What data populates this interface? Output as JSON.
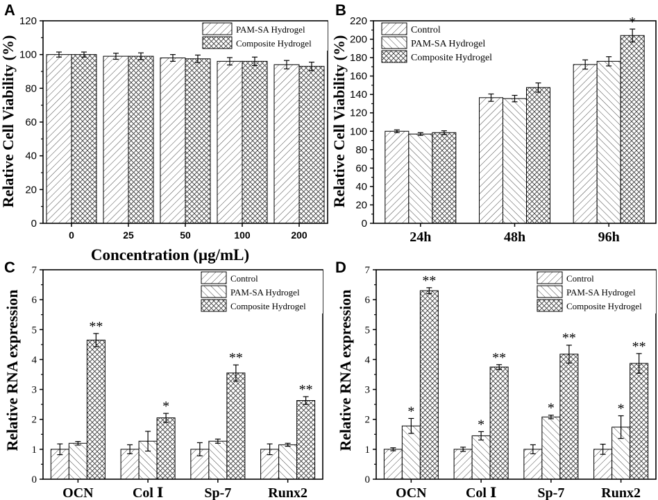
{
  "figure": {
    "panel_letters": [
      "A",
      "B",
      "C",
      "D"
    ]
  },
  "colors": {
    "axis": "#000000",
    "hatch": "#222222",
    "background": "#ffffff"
  },
  "chart_data": [
    {
      "panel": "A",
      "type": "bar",
      "title": "",
      "xlabel": "Concentration (μg/mL)",
      "ylabel": "Relative Cell Viability (%)",
      "ylim": [
        0,
        120
      ],
      "yticks": [
        0,
        20,
        40,
        60,
        80,
        100,
        120
      ],
      "categories": [
        "0",
        "25",
        "50",
        "100",
        "200"
      ],
      "legend_position": "top-right",
      "series": [
        {
          "name": "PAM-SA Hydrogel",
          "pattern": "diag-down",
          "values": [
            100,
            99,
            98,
            96,
            94
          ],
          "errors": [
            1.5,
            1.8,
            2.0,
            2.2,
            2.5
          ],
          "labels": [
            "",
            "",
            "",
            "",
            ""
          ]
        },
        {
          "name": "Composite Hydrogel",
          "pattern": "cross",
          "values": [
            100,
            99,
            97.5,
            96,
            93
          ],
          "errors": [
            1.5,
            2.0,
            2.2,
            2.5,
            2.5
          ],
          "labels": [
            "",
            "",
            "",
            "",
            ""
          ]
        }
      ]
    },
    {
      "panel": "B",
      "type": "bar",
      "title": "",
      "xlabel": "",
      "ylabel": "Relative Cell Viability (%)",
      "ylim": [
        0,
        220
      ],
      "yticks": [
        0,
        20,
        40,
        60,
        80,
        100,
        120,
        140,
        160,
        180,
        200,
        220
      ],
      "categories": [
        "24h",
        "48h",
        "96h"
      ],
      "legend_position": "top-left",
      "series": [
        {
          "name": "Control",
          "pattern": "diag-down",
          "values": [
            100,
            136.5,
            172.5
          ],
          "errors": [
            1.5,
            4,
            5
          ],
          "labels": [
            "",
            "",
            ""
          ]
        },
        {
          "name": "PAM-SA Hydrogel",
          "pattern": "diag-up",
          "values": [
            97,
            135.5,
            176
          ],
          "errors": [
            1.5,
            3.5,
            5
          ],
          "labels": [
            "",
            "",
            ""
          ]
        },
        {
          "name": "Composite Hydrogel",
          "pattern": "cross",
          "values": [
            98.5,
            147.5,
            204
          ],
          "errors": [
            2,
            5,
            7
          ],
          "labels": [
            "",
            "",
            "*"
          ]
        }
      ]
    },
    {
      "panel": "C",
      "type": "bar",
      "title": "",
      "xlabel": "",
      "ylabel": "Relative RNA expression",
      "ylim": [
        0,
        7
      ],
      "yticks": [
        0,
        1,
        2,
        3,
        4,
        5,
        6,
        7
      ],
      "categories": [
        "OCN",
        "Col Ⅰ",
        "Sp-7",
        "Runx2"
      ],
      "legend_position": "top-right",
      "series": [
        {
          "name": "Control",
          "pattern": "diag-down",
          "values": [
            1.0,
            1.0,
            1.0,
            1.0
          ],
          "errors": [
            0.18,
            0.15,
            0.22,
            0.18
          ],
          "labels": [
            "",
            "",
            "",
            ""
          ]
        },
        {
          "name": "PAM-SA Hydrogel",
          "pattern": "diag-up",
          "values": [
            1.2,
            1.27,
            1.27,
            1.15
          ],
          "errors": [
            0.06,
            0.33,
            0.07,
            0.05
          ],
          "labels": [
            "",
            "",
            "",
            ""
          ]
        },
        {
          "name": "Composite Hydrogel",
          "pattern": "cross",
          "values": [
            4.65,
            2.05,
            3.55,
            2.63
          ],
          "errors": [
            0.22,
            0.15,
            0.27,
            0.13
          ],
          "labels": [
            "**",
            "*",
            "**",
            "**"
          ]
        }
      ]
    },
    {
      "panel": "D",
      "type": "bar",
      "title": "",
      "xlabel": "",
      "ylabel": "Relative RNA expression",
      "ylim": [
        0,
        7
      ],
      "yticks": [
        0,
        1,
        2,
        3,
        4,
        5,
        6,
        7
      ],
      "categories": [
        "OCN",
        "Col Ⅰ",
        "Sp-7",
        "Runx2"
      ],
      "legend_position": "top-right",
      "series": [
        {
          "name": "Control",
          "pattern": "diag-down",
          "values": [
            1.0,
            1.0,
            1.0,
            1.0
          ],
          "errors": [
            0.05,
            0.07,
            0.15,
            0.17
          ],
          "labels": [
            "",
            "",
            "",
            ""
          ]
        },
        {
          "name": "PAM-SA Hydrogel",
          "pattern": "diag-up",
          "values": [
            1.78,
            1.45,
            2.08,
            1.74
          ],
          "errors": [
            0.25,
            0.14,
            0.06,
            0.38
          ],
          "labels": [
            "*",
            "*",
            "*",
            "*"
          ]
        },
        {
          "name": "Composite Hydrogel",
          "pattern": "cross",
          "values": [
            6.3,
            3.75,
            4.18,
            3.87
          ],
          "errors": [
            0.1,
            0.08,
            0.3,
            0.33
          ],
          "labels": [
            "**",
            "**",
            "**",
            "**"
          ]
        }
      ]
    }
  ]
}
